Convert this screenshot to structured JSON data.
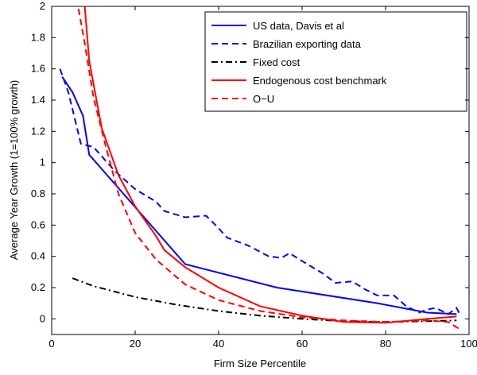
{
  "chart_data": {
    "type": "line",
    "xlabel": "Firm Size Percentile",
    "ylabel": "Average Year Growth (1=100% growth)",
    "xlim": [
      0,
      100
    ],
    "ylim": [
      -0.1,
      2
    ],
    "xticks": [
      0,
      20,
      40,
      60,
      80,
      100
    ],
    "yticks": [
      0,
      0.2,
      0.4,
      0.6,
      0.8,
      1,
      1.2,
      1.4,
      1.6,
      1.8,
      2
    ],
    "legend": "northeast",
    "series": [
      {
        "name": "US data, Davis et al",
        "color": "#0000ff",
        "style": "solid",
        "x": [
          2.5,
          5,
          7.5,
          9,
          32,
          54,
          78,
          90,
          97
        ],
        "values": [
          1.55,
          1.45,
          1.3,
          1.05,
          0.35,
          0.2,
          0.1,
          0.04,
          0.03
        ]
      },
      {
        "name": "Brazilian exporting data",
        "color": "#0000ff",
        "style": "dashed",
        "x": [
          2,
          4,
          7,
          10,
          15,
          20,
          25,
          27,
          32,
          37,
          40,
          42,
          47,
          52,
          55,
          57,
          60,
          65,
          68,
          72,
          75,
          78,
          82,
          85,
          88,
          90,
          92,
          95,
          97,
          98
        ],
        "values": [
          1.6,
          1.45,
          1.12,
          1.1,
          0.95,
          0.83,
          0.75,
          0.69,
          0.65,
          0.66,
          0.58,
          0.52,
          0.47,
          0.4,
          0.39,
          0.42,
          0.37,
          0.29,
          0.23,
          0.24,
          0.19,
          0.15,
          0.15,
          0.08,
          0.04,
          0.06,
          0.07,
          0.03,
          0.07,
          0.02
        ]
      },
      {
        "name": "Fixed cost",
        "color": "#000000",
        "style": "dashdot",
        "x": [
          5,
          10,
          20,
          30,
          40,
          50,
          60,
          70,
          80,
          90,
          97
        ],
        "values": [
          0.26,
          0.21,
          0.14,
          0.09,
          0.05,
          0.02,
          0.0,
          -0.015,
          -0.02,
          -0.015,
          -0.01
        ]
      },
      {
        "name": "Endogenous cost benchmark",
        "color": "#ff0000",
        "style": "solid",
        "x": [
          7,
          9,
          12,
          16,
          20,
          25,
          27,
          32,
          40,
          50,
          60,
          70,
          80,
          90,
          97
        ],
        "values": [
          2.3,
          1.65,
          1.22,
          0.92,
          0.72,
          0.53,
          0.44,
          0.33,
          0.2,
          0.08,
          0.02,
          -0.02,
          -0.025,
          0.0,
          0.015
        ]
      },
      {
        "name": "O−U",
        "color": "#ff0000",
        "style": "dashed",
        "x": [
          6,
          8,
          10,
          13,
          16,
          20,
          25,
          32,
          40,
          50,
          60,
          70,
          80,
          90,
          95,
          98
        ],
        "values": [
          2.05,
          1.75,
          1.42,
          1.1,
          0.8,
          0.55,
          0.38,
          0.22,
          0.12,
          0.05,
          0.01,
          -0.01,
          -0.02,
          -0.01,
          -0.02,
          -0.07
        ]
      }
    ]
  }
}
